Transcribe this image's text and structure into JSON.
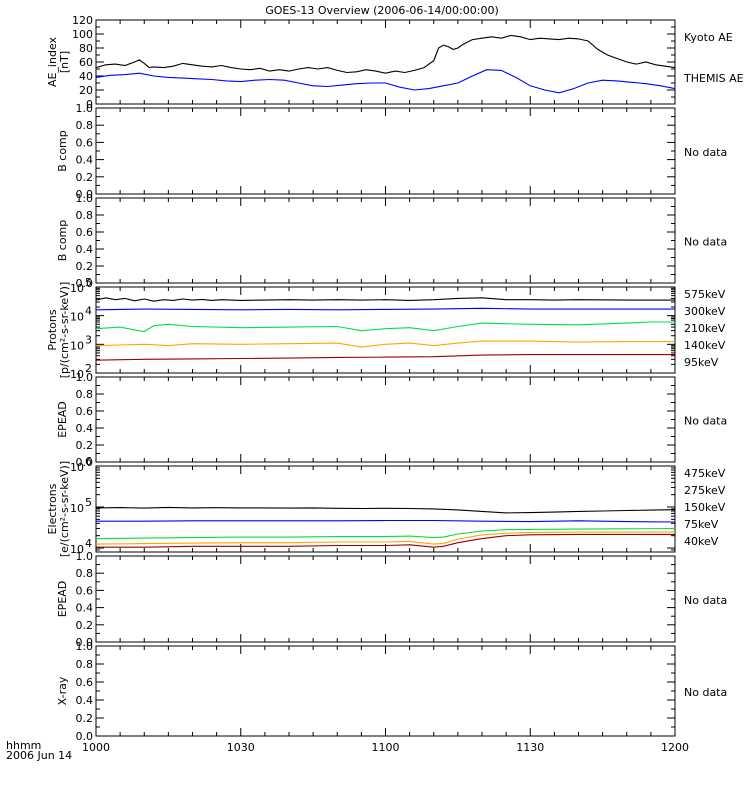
{
  "title": "GOES-13 Overview (2006-06-14/00:00:00)",
  "time_axis": {
    "label_line1": "hhmm",
    "label_line2": "2006 Jun 14",
    "ticks": [
      "1000",
      "1030",
      "1100",
      "1130",
      "1200"
    ],
    "range_minutes": [
      0,
      120
    ]
  },
  "colors": {
    "black": "#000000",
    "blue": "#0000ff",
    "green": "#00e040",
    "orange": "#ffa500",
    "darkred": "#990000"
  },
  "chart_data": [
    {
      "id": "ae",
      "type": "line",
      "ylabel": [
        "AE_index",
        "[nT]"
      ],
      "ylim": [
        0,
        120
      ],
      "yscale": "linear",
      "yticks": [
        "0",
        "20",
        "40",
        "60",
        "80",
        "100",
        "120"
      ],
      "series": [
        {
          "name": "Kyoto AE",
          "color": "black",
          "x": [
            0,
            2,
            4,
            6,
            8,
            9,
            10,
            11,
            12,
            14,
            16,
            18,
            20,
            22,
            24,
            26,
            28,
            30,
            32,
            34,
            36,
            38,
            40,
            42,
            44,
            46,
            48,
            50,
            52,
            54,
            56,
            58,
            60,
            62,
            64,
            66,
            68,
            70,
            71,
            72,
            73,
            74,
            75,
            76,
            78,
            80,
            82,
            84,
            86,
            88,
            90,
            92,
            94,
            96,
            98,
            100,
            102,
            104,
            106,
            108,
            110,
            112,
            114,
            116,
            118,
            120
          ],
          "y": [
            52,
            56,
            57,
            55,
            60,
            63,
            58,
            52,
            53,
            52,
            54,
            58,
            56,
            54,
            53,
            55,
            52,
            50,
            49,
            51,
            47,
            49,
            47,
            50,
            52,
            50,
            52,
            48,
            45,
            46,
            49,
            47,
            44,
            47,
            45,
            48,
            52,
            62,
            80,
            84,
            82,
            78,
            80,
            85,
            92,
            94,
            96,
            94,
            98,
            96,
            92,
            94,
            93,
            92,
            94,
            93,
            90,
            78,
            70,
            65,
            60,
            57,
            60,
            56,
            54,
            52
          ]
        },
        {
          "name": "THEMIS AE",
          "color": "blue",
          "x": [
            0,
            3,
            6,
            9,
            12,
            15,
            18,
            21,
            24,
            27,
            30,
            33,
            36,
            39,
            42,
            45,
            48,
            51,
            54,
            57,
            60,
            63,
            66,
            69,
            72,
            75,
            78,
            81,
            84,
            87,
            90,
            93,
            96,
            99,
            102,
            105,
            108,
            111,
            114,
            117,
            120
          ],
          "y": [
            38,
            41,
            42,
            44,
            40,
            38,
            37,
            36,
            35,
            33,
            32,
            34,
            35,
            34,
            30,
            26,
            25,
            27,
            29,
            30,
            30,
            24,
            20,
            22,
            26,
            30,
            40,
            49,
            48,
            38,
            26,
            20,
            16,
            22,
            30,
            34,
            33,
            31,
            29,
            26,
            22
          ]
        }
      ]
    },
    {
      "id": "bcomp1",
      "type": "line",
      "ylabel": [
        "B comp"
      ],
      "ylim": [
        0,
        1
      ],
      "yscale": "linear",
      "yticks": [
        "0.0",
        "0.2",
        "0.4",
        "0.6",
        "0.8",
        "1.0"
      ],
      "note": "No data",
      "series": []
    },
    {
      "id": "bcomp2",
      "type": "line",
      "ylabel": [
        "B comp"
      ],
      "ylim": [
        0,
        1
      ],
      "yscale": "linear",
      "yticks": [
        "0.0",
        "0.2",
        "0.4",
        "0.6",
        "0.8",
        "1.0"
      ],
      "note": "No data",
      "series": []
    },
    {
      "id": "protons",
      "type": "line",
      "ylabel": [
        "Protons",
        "[p/(cm²-s-sr-keV)]"
      ],
      "ylim": [
        100,
        100000
      ],
      "yscale": "log",
      "yticks": [
        {
          "base": "10",
          "exp": "2"
        },
        {
          "base": "10",
          "exp": "3"
        },
        {
          "base": "10",
          "exp": "4"
        },
        {
          "base": "10",
          "exp": "5"
        }
      ],
      "series": [
        {
          "name": "575keV",
          "color": "darkred",
          "x": [
            0,
            10,
            20,
            30,
            40,
            50,
            60,
            70,
            80,
            90,
            100,
            110,
            120
          ],
          "y": [
            280,
            300,
            310,
            320,
            330,
            350,
            360,
            370,
            420,
            440,
            440,
            440,
            440
          ]
        },
        {
          "name": "300keV",
          "color": "orange",
          "x": [
            0,
            5,
            10,
            15,
            20,
            30,
            40,
            50,
            55,
            60,
            65,
            70,
            75,
            80,
            90,
            100,
            110,
            120
          ],
          "y": [
            900,
            950,
            1000,
            900,
            1050,
            1000,
            1050,
            1100,
            800,
            1000,
            1100,
            900,
            1100,
            1300,
            1300,
            1200,
            1250,
            1250
          ]
        },
        {
          "name": "210keV",
          "color": "green",
          "x": [
            0,
            5,
            8,
            10,
            12,
            15,
            20,
            30,
            40,
            50,
            55,
            60,
            65,
            70,
            75,
            80,
            90,
            100,
            110,
            115,
            120
          ],
          "y": [
            3500,
            4000,
            3200,
            2800,
            4500,
            5000,
            4200,
            3800,
            4000,
            4200,
            3000,
            3500,
            3800,
            3000,
            4200,
            5500,
            5000,
            4800,
            5500,
            6000,
            6000
          ]
        },
        {
          "name": "140keV",
          "color": "blue",
          "x": [
            0,
            10,
            20,
            30,
            40,
            50,
            60,
            70,
            80,
            90,
            100,
            110,
            120
          ],
          "y": [
            16000,
            17000,
            16500,
            16000,
            16500,
            16000,
            16500,
            17000,
            18000,
            17000,
            17000,
            17000,
            17000
          ]
        },
        {
          "name": "95keV",
          "color": "black",
          "x": [
            0,
            2,
            4,
            6,
            8,
            10,
            12,
            14,
            16,
            18,
            20,
            22,
            24,
            26,
            28,
            30,
            35,
            40,
            45,
            50,
            55,
            60,
            65,
            70,
            75,
            80,
            85,
            90,
            95,
            100,
            110,
            120
          ],
          "y": [
            35000,
            42000,
            36000,
            40000,
            33000,
            38000,
            32000,
            36000,
            34000,
            38000,
            35000,
            37000,
            34000,
            36000,
            35000,
            34000,
            35000,
            36000,
            35000,
            36000,
            35000,
            36000,
            34000,
            36000,
            40000,
            42000,
            36000,
            36000,
            35000,
            36000,
            35000,
            35000
          ]
        }
      ]
    },
    {
      "id": "epead1",
      "type": "line",
      "ylabel": [
        "EPEAD"
      ],
      "ylim": [
        0,
        1
      ],
      "yscale": "linear",
      "yticks": [
        "0.0",
        "0.2",
        "0.4",
        "0.6",
        "0.8",
        "1.0"
      ],
      "note": "No data",
      "series": []
    },
    {
      "id": "electrons",
      "type": "line",
      "ylabel": [
        "Electrons",
        "[e/(cm²-s-sr-keV)]"
      ],
      "ylim": [
        8000,
        1000000
      ],
      "yscale": "log",
      "yticks": [
        {
          "base": "10",
          "exp": "4"
        },
        {
          "base": "10",
          "exp": "5"
        },
        {
          "base": "10",
          "exp": "6"
        }
      ],
      "series": [
        {
          "name": "475keV",
          "color": "darkred",
          "x": [
            0,
            10,
            20,
            30,
            40,
            50,
            60,
            65,
            70,
            72,
            75,
            80,
            85,
            90,
            100,
            110,
            120
          ],
          "y": [
            10500,
            10500,
            11000,
            11000,
            11000,
            11500,
            11500,
            12000,
            10500,
            11000,
            13500,
            17000,
            20000,
            21000,
            21500,
            21500,
            21500
          ]
        },
        {
          "name": "275keV",
          "color": "orange",
          "x": [
            0,
            10,
            20,
            30,
            40,
            50,
            60,
            65,
            70,
            72,
            75,
            80,
            85,
            90,
            100,
            110,
            120
          ],
          "y": [
            12500,
            12800,
            13200,
            13500,
            13500,
            14000,
            14000,
            14500,
            12500,
            13000,
            16500,
            21000,
            23000,
            24000,
            24500,
            24500,
            24500
          ]
        },
        {
          "name": "150keV",
          "color": "green",
          "x": [
            0,
            10,
            20,
            30,
            40,
            50,
            60,
            65,
            70,
            72,
            75,
            80,
            85,
            90,
            100,
            110,
            120
          ],
          "y": [
            17000,
            17500,
            18000,
            18500,
            18500,
            19000,
            19000,
            19500,
            18000,
            18500,
            22000,
            26000,
            28000,
            28500,
            29000,
            29500,
            30000
          ]
        },
        {
          "name": "75keV",
          "color": "blue",
          "x": [
            0,
            10,
            20,
            30,
            40,
            50,
            60,
            70,
            80,
            90,
            100,
            110,
            120
          ],
          "y": [
            45000,
            45000,
            46000,
            46000,
            46000,
            46000,
            47000,
            47000,
            45000,
            44000,
            46000,
            44000,
            43000
          ]
        },
        {
          "name": "40keV",
          "color": "black",
          "x": [
            0,
            5,
            10,
            15,
            20,
            25,
            30,
            35,
            40,
            45,
            50,
            55,
            60,
            65,
            70,
            75,
            80,
            85,
            90,
            95,
            100,
            105,
            110,
            115,
            120
          ],
          "y": [
            95000,
            97000,
            94000,
            98000,
            95000,
            96000,
            95000,
            95000,
            94000,
            95000,
            93000,
            92000,
            93000,
            92000,
            90000,
            85000,
            78000,
            72000,
            73000,
            75000,
            78000,
            80000,
            82000,
            84000,
            86000
          ]
        }
      ]
    },
    {
      "id": "epead2",
      "type": "line",
      "ylabel": [
        "EPEAD"
      ],
      "ylim": [
        0,
        1
      ],
      "yscale": "linear",
      "yticks": [
        "0.0",
        "0.2",
        "0.4",
        "0.6",
        "0.8",
        "1.0"
      ],
      "note": "No data",
      "series": []
    },
    {
      "id": "xray",
      "type": "line",
      "ylabel": [
        "X-ray"
      ],
      "ylim": [
        0,
        1
      ],
      "yscale": "linear",
      "yticks": [
        "0.0",
        "0.2",
        "0.4",
        "0.6",
        "0.8",
        "1.0"
      ],
      "note": "No data",
      "series": []
    }
  ]
}
